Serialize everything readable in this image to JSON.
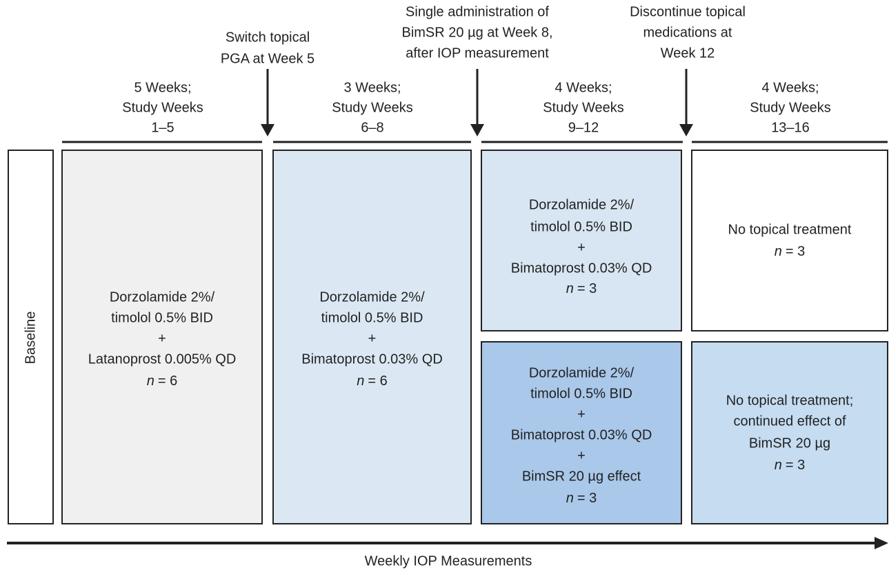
{
  "periods": [
    {
      "lines": [
        "5 Weeks;",
        "Study Weeks",
        "1–5"
      ]
    },
    {
      "lines": [
        "3 Weeks;",
        "Study Weeks",
        "6–8"
      ]
    },
    {
      "lines": [
        "4 Weeks;",
        "Study Weeks",
        "9–12"
      ]
    },
    {
      "lines": [
        "4 Weeks;",
        "Study Weeks",
        "13–16"
      ]
    }
  ],
  "events": [
    {
      "lines": [
        "Switch topical",
        "PGA at Week 5"
      ]
    },
    {
      "lines": [
        "Single administration of",
        "BimSR 20 µg at Week 8,",
        "after IOP measurement"
      ]
    },
    {
      "lines": [
        "Discontinue topical",
        "medications at",
        "Week 12"
      ]
    }
  ],
  "baseline": "Baseline",
  "boxes": [
    {
      "lines": [
        "Dorzolamide 2%/",
        "timolol 0.5% BID",
        "+",
        "Latanoprost 0.005% QD",
        {
          "n": "n",
          "count": "= 6"
        }
      ]
    },
    {
      "lines": [
        "Dorzolamide 2%/",
        "timolol 0.5% BID",
        "+",
        "Bimatoprost 0.03% QD",
        {
          "n": "n",
          "count": "= 6"
        }
      ]
    },
    {
      "lines": [
        "Dorzolamide 2%/",
        "timolol 0.5% BID",
        "+",
        "Bimatoprost 0.03% QD",
        {
          "n": "n",
          "count": "= 3"
        }
      ]
    },
    {
      "lines": [
        "No topical treatment",
        {
          "n": "n",
          "count": "= 3"
        }
      ]
    },
    {
      "lines": [
        "Dorzolamide 2%/",
        "timolol 0.5% BID",
        "+",
        "Bimatoprost 0.03% QD",
        "+",
        "BimSR 20 µg effect",
        {
          "n": "n",
          "count": "= 3"
        }
      ]
    },
    {
      "lines": [
        "No topical treatment;",
        "continued effect of",
        "BimSR 20 µg",
        {
          "n": "n",
          "count": "= 3"
        }
      ]
    }
  ],
  "footer": "Weekly IOP Measurements"
}
